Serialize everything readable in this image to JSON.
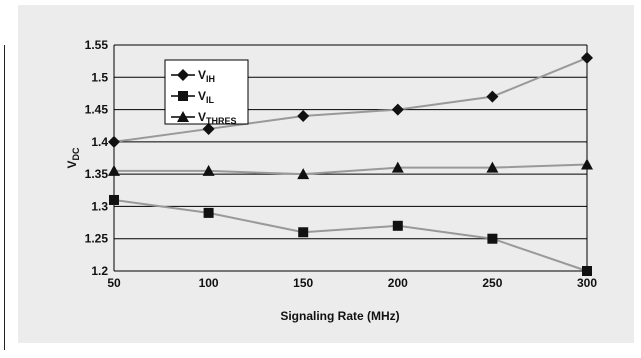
{
  "chart_data": {
    "type": "line",
    "xlabel": "Signaling Rate (MHz)",
    "ylabel": {
      "main": "V",
      "sub": "DC"
    },
    "x": [
      50,
      100,
      150,
      200,
      250,
      300
    ],
    "xlim": [
      50,
      300
    ],
    "ylim": [
      1.2,
      1.55
    ],
    "xticks": [
      "50",
      "100",
      "150",
      "200",
      "250",
      "300"
    ],
    "yticks": [
      "1.2",
      "1.25",
      "1.3",
      "1.35",
      "1.4",
      "1.45",
      "1.5",
      "1.55"
    ],
    "grid": "horizontal",
    "legend_position": "top-left",
    "series": [
      {
        "name": "VIH",
        "label_main": "V",
        "label_sub": "IH",
        "marker": "diamond",
        "values": [
          1.4,
          1.42,
          1.44,
          1.45,
          1.47,
          1.53
        ]
      },
      {
        "name": "VIL",
        "label_main": "V",
        "label_sub": "IL",
        "marker": "square",
        "values": [
          1.31,
          1.29,
          1.26,
          1.27,
          1.25,
          1.2
        ]
      },
      {
        "name": "VTHRES",
        "label_main": "V",
        "label_sub": "THRES",
        "marker": "triangle",
        "values": [
          1.355,
          1.355,
          1.35,
          1.36,
          1.36,
          1.365
        ]
      }
    ],
    "colors": {
      "line": "#999999",
      "marker": "#111111",
      "grid": "#000000",
      "panel": "#ececec"
    }
  }
}
